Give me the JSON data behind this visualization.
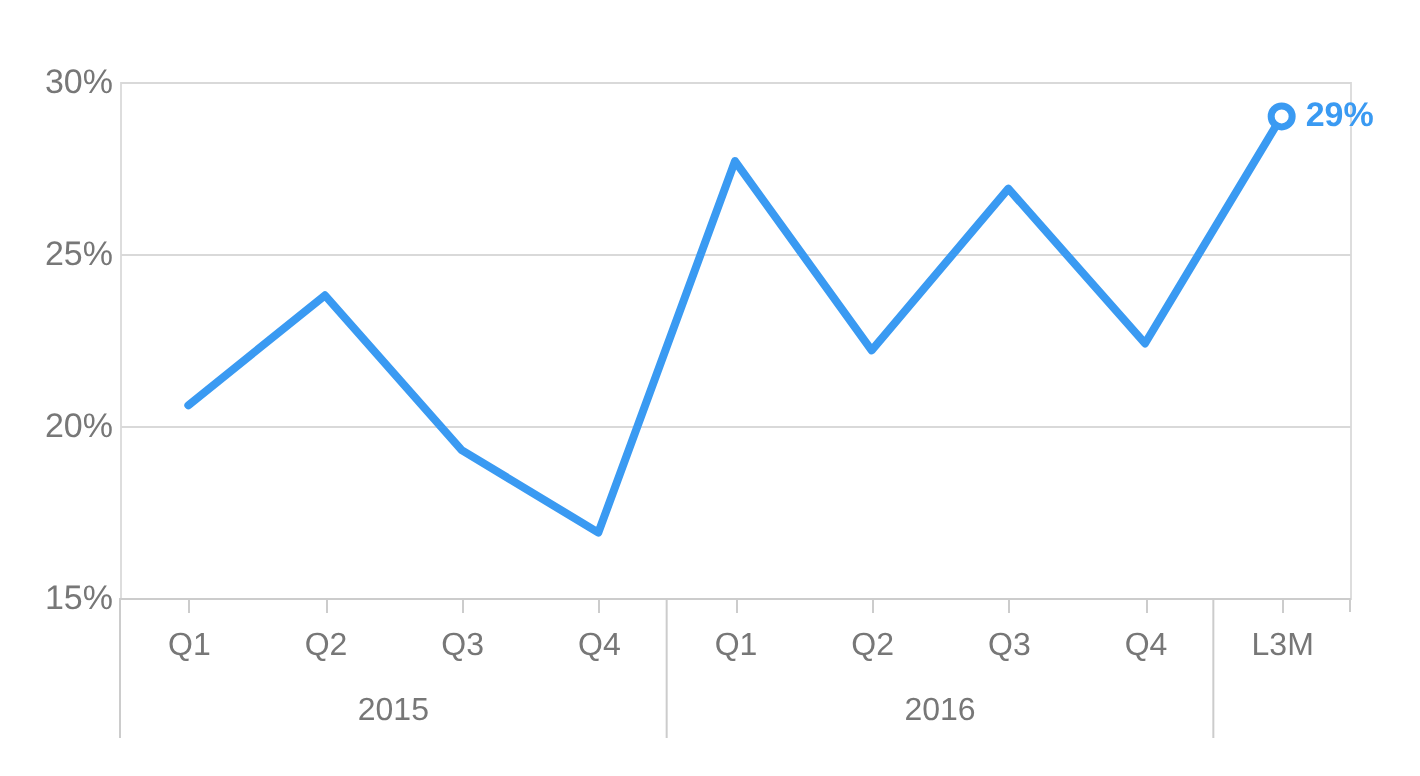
{
  "chart_data": {
    "type": "line",
    "categories": [
      "Q1",
      "Q2",
      "Q3",
      "Q4",
      "Q1",
      "Q2",
      "Q3",
      "Q4",
      "L3M"
    ],
    "series": [
      {
        "color": "#3a9af2",
        "values": [
          20.6,
          23.8,
          19.3,
          16.9,
          27.7,
          22.2,
          26.9,
          22.4,
          29.0
        ],
        "value_labels": [
          null,
          null,
          null,
          null,
          null,
          null,
          null,
          null,
          "29%"
        ]
      }
    ],
    "ylim": [
      15,
      30
    ],
    "yticks": [
      {
        "value": 15,
        "label": "15%"
      },
      {
        "value": 20,
        "label": "20%"
      },
      {
        "value": 25,
        "label": "25%"
      },
      {
        "value": 30,
        "label": "30%"
      }
    ],
    "annotations": [
      "2015",
      "2016"
    ],
    "grid": "y",
    "marker": "none",
    "line_style": "solid"
  }
}
